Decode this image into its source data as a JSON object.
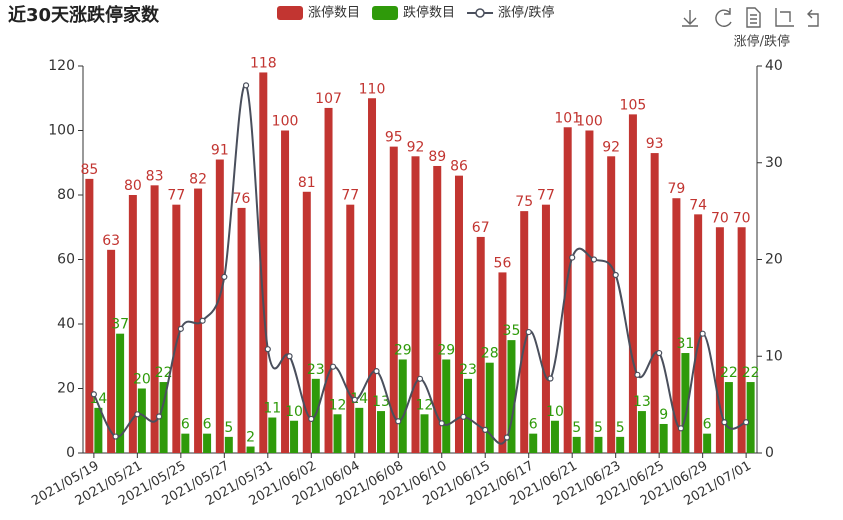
{
  "chart_data": {
    "type": "bar",
    "title": "近30天涨跌停家数",
    "y2label": "涨停/跌停",
    "legend": "top",
    "categories": [
      "2021/05/19",
      null,
      "2021/05/21",
      null,
      "2021/05/25",
      null,
      "2021/05/27",
      null,
      "2021/05/31",
      null,
      "2021/06/02",
      null,
      "2021/06/04",
      null,
      "2021/06/08",
      null,
      "2021/06/10",
      null,
      "2021/06/15",
      null,
      "2021/06/17",
      null,
      "2021/06/21",
      null,
      "2021/06/23",
      null,
      "2021/06/25",
      null,
      "2021/06/29",
      null,
      "2021/07/01"
    ],
    "series": [
      {
        "name": "涨停数目",
        "type": "bar",
        "color": "#c23531",
        "values": [
          85,
          63,
          80,
          83,
          77,
          82,
          91,
          76,
          118,
          100,
          81,
          107,
          77,
          110,
          95,
          92,
          89,
          86,
          67,
          56,
          75,
          77,
          101,
          100,
          92,
          105,
          93,
          79,
          74,
          70,
          70
        ]
      },
      {
        "name": "跌停数目",
        "type": "bar",
        "color": "#2f9a0a",
        "values": [
          14,
          37,
          20,
          22,
          6,
          6,
          5,
          2,
          11,
          10,
          23,
          12,
          14,
          13,
          29,
          12,
          29,
          23,
          28,
          35,
          6,
          10,
          5,
          5,
          5,
          13,
          9,
          31,
          6,
          22,
          22
        ]
      },
      {
        "name": "涨停/跌停",
        "type": "line",
        "axis": "y2",
        "color": "#4a4f5c",
        "values": [
          6.07,
          1.7,
          4,
          3.77,
          12.83,
          13.67,
          18.2,
          38,
          10.73,
          10,
          3.52,
          8.92,
          5.5,
          8.46,
          3.28,
          7.67,
          3.07,
          3.74,
          2.39,
          1.6,
          12.5,
          7.7,
          20.2,
          20,
          18.4,
          8.08,
          10.33,
          2.55,
          12.33,
          3.18,
          3.18
        ]
      }
    ],
    "ylim": [
      0,
      120
    ],
    "yticks": [
      0,
      20,
      40,
      60,
      80,
      100,
      120
    ],
    "y2lim": [
      0,
      40
    ],
    "y2ticks": [
      0,
      10,
      20,
      30,
      40
    ],
    "grid": false
  }
}
